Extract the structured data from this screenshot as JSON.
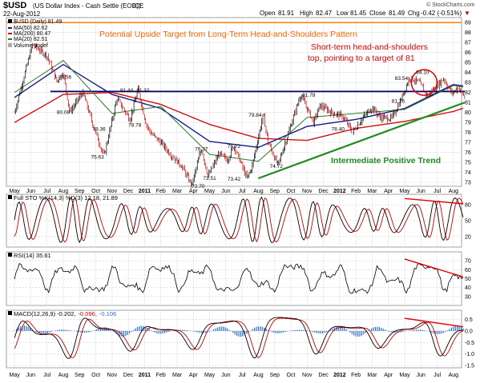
{
  "header": {
    "symbol": "$USD",
    "name": "(US Dollar Index - Cash Settle (EOD))",
    "exchange": "ICE",
    "date": "22-Aug-2012",
    "watermark": "© StockCharts.com",
    "open_label": "Open",
    "open": "81.91",
    "high_label": "High",
    "high": "82.47",
    "low_label": "Low",
    "low": "81.45",
    "close_label": "Close",
    "close": "81.49",
    "chg_label": "Chg",
    "chg": "-0.42 (-0.51%)",
    "chg_arrow": "▼"
  },
  "legend": {
    "price": "$USD (Daily) 81.49",
    "ma50": "MA(50) 82.62",
    "ma200": "MA(200) 80.47",
    "ma20": "MA(20) 82.51",
    "volume": "Volume undef"
  },
  "annotations": {
    "upside_target": "Potential Upside Target from Long-Term Head-and-Shoulders Pattern",
    "short_term_line1": "Short-term head-and-shoulders",
    "short_term_line2": "top, pointing to a target of 81",
    "trend": "Intermediate Positive Trend"
  },
  "panels": {
    "sto_label": "Full STO %K(14,3) %D(3) 12.18, 21.89",
    "rsi_label": "RSI(14) 35.61",
    "macd_label_prefix": "MACD(12,26,9) -0.202,",
    "macd_signal_value": "-0.096,",
    "macd_hist_value": "-0.106"
  },
  "colors": {
    "price": "#000000",
    "up_candle": "#000000",
    "down_candle": "#cc0000",
    "ma50": "#1a1a8c",
    "ma200": "#d01010",
    "ma20": "#2a7a2a",
    "target_line": "#ff7f00",
    "neckline": "#00006e",
    "trend_line": "#228b22",
    "annotation_red": "#e00000",
    "annotation_orange": "#ff6600",
    "annotation_green": "#1e8c1e",
    "macd_hist": "#2a6fd6"
  },
  "chart_data": [
    {
      "type": "line",
      "title": "$USD (Daily) 81.49",
      "x_labels": [
        "May",
        "Jun",
        "Jul",
        "Aug",
        "Sep",
        "Oct",
        "Nov",
        "Dec",
        "2011",
        "Feb",
        "Mar",
        "Apr",
        "May",
        "Jun",
        "Jul",
        "Aug",
        "Sep",
        "Oct",
        "Nov",
        "Dec",
        "2012",
        "Feb",
        "Mar",
        "Apr",
        "May",
        "Jun",
        "Jul",
        "Aug"
      ],
      "y_ticks": [
        73,
        74,
        75,
        76,
        77,
        78,
        79,
        80,
        81,
        82,
        83,
        84,
        85,
        86,
        87,
        88,
        89
      ],
      "ylim": [
        72.6,
        89.5
      ],
      "series": [
        {
          "name": "$USD (Daily)",
          "x": [
            0,
            1.1,
            2.0,
            2.6,
            3.0,
            3.4,
            4.2,
            4.9,
            5.5,
            6.3,
            7.1,
            7.6,
            8.1,
            8.4,
            9.0,
            9.6,
            10.3,
            10.9,
            11.5,
            11.9,
            12.6,
            13.1,
            13.5,
            14.3,
            14.6,
            15.3,
            15.6,
            16.2,
            16.9,
            17.6,
            18.4,
            18.8,
            19.5,
            20.2,
            20.8,
            21.4,
            22.0,
            22.5,
            23.2,
            23.7,
            24.3,
            24.9,
            25.4,
            25.9,
            26.4,
            26.9,
            27.3,
            27.7
          ],
          "y": [
            80.0,
            86.8,
            85.7,
            83.1,
            84.0,
            80.0,
            82.0,
            78.4,
            75.6,
            81.4,
            79.3,
            82.3,
            78.8,
            77.9,
            77.0,
            75.8,
            74.6,
            72.7,
            76.4,
            73.6,
            75.9,
            75.2,
            76.7,
            73.4,
            74.5,
            79.8,
            77.0,
            74.7,
            78.2,
            81.8,
            79.0,
            80.7,
            80.0,
            79.6,
            78.0,
            79.4,
            80.5,
            79.5,
            79.4,
            81.0,
            83.5,
            83.0,
            81.6,
            82.5,
            83.4,
            81.9,
            82.5,
            81.5
          ]
        },
        {
          "name": "MA(50)",
          "x": [
            0,
            3,
            6,
            9,
            12,
            15,
            18,
            21,
            24,
            27,
            27.7
          ],
          "y": [
            81.5,
            84.8,
            81.8,
            80.4,
            77.1,
            76.5,
            78.6,
            79.3,
            80.4,
            82.8,
            82.62
          ]
        },
        {
          "name": "MA(200)",
          "x": [
            0,
            3,
            6,
            9,
            12,
            15,
            18,
            21,
            24,
            27,
            27.7
          ],
          "y": [
            79.0,
            81.8,
            82.0,
            80.8,
            78.8,
            77.4,
            77.2,
            78.4,
            79.1,
            80.1,
            80.47
          ]
        },
        {
          "name": "MA(20)",
          "x": [
            0,
            3,
            6,
            9,
            12,
            15,
            18,
            21,
            24,
            27,
            27.7
          ],
          "y": [
            82.0,
            85.2,
            79.9,
            80.6,
            75.8,
            75.1,
            79.5,
            79.9,
            80.3,
            82.7,
            82.51
          ]
        }
      ],
      "price_labels": [
        {
          "text": "83.56",
          "x": 3.1,
          "y": 83.6
        },
        {
          "text": "80.08",
          "x": 3.0,
          "y": 80.1
        },
        {
          "text": "81.44",
          "x": 6.9,
          "y": 82.3
        },
        {
          "text": "81.32",
          "x": 7.9,
          "y": 82.3
        },
        {
          "text": "78.36",
          "x": 5.2,
          "y": 78.4
        },
        {
          "text": "78.78",
          "x": 7.4,
          "y": 78.8
        },
        {
          "text": "75.63",
          "x": 5.1,
          "y": 75.6
        },
        {
          "text": "76.37",
          "x": 11.5,
          "y": 76.4
        },
        {
          "text": "76.72",
          "x": 13.5,
          "y": 76.7
        },
        {
          "text": "73.51",
          "x": 12.0,
          "y": 73.5
        },
        {
          "text": "73.42",
          "x": 13.5,
          "y": 73.4
        },
        {
          "text": "72.70",
          "x": 11.3,
          "y": 72.7
        },
        {
          "text": "79.84",
          "x": 14.8,
          "y": 79.8
        },
        {
          "text": "74.72",
          "x": 16.1,
          "y": 74.7
        },
        {
          "text": "81.78",
          "x": 18.1,
          "y": 81.8
        },
        {
          "text": "78.40",
          "x": 19.9,
          "y": 78.4
        },
        {
          "text": "83.54",
          "x": 23.8,
          "y": 83.5
        },
        {
          "text": "81.16",
          "x": 23.6,
          "y": 81.2
        },
        {
          "text": "84.10",
          "x": 25.1,
          "y": 84.1
        }
      ],
      "lines": [
        {
          "name": "Potential Upside Target",
          "y": 89.0
        },
        {
          "name": "Neckline",
          "y": 82.1
        },
        {
          "name": "Intermediate Positive Trend",
          "x": [
            15.0,
            27.7
          ],
          "y": [
            73.4,
            81.0
          ]
        }
      ]
    },
    {
      "type": "line",
      "title": "Full STO %K(14,3) %D(3) 12.18, 21.89",
      "ylim": [
        0,
        100
      ],
      "y_ticks": [
        20,
        50,
        80
      ],
      "series": [
        {
          "name": "%K",
          "last": 12.18
        },
        {
          "name": "%D",
          "last": 21.89
        }
      ]
    },
    {
      "type": "line",
      "title": "RSI(14) 35.61",
      "ylim": [
        20,
        80
      ],
      "y_ticks": [
        30,
        40,
        50,
        60,
        70
      ],
      "series": [
        {
          "name": "RSI(14)",
          "last": 35.61
        }
      ]
    },
    {
      "type": "line",
      "title": "MACD(12,26,9) -0.202, -0.096, -0.106",
      "ylim": [
        -1.6,
        0.9
      ],
      "y_ticks": [
        -1.5,
        -1.0,
        -0.5,
        0.0,
        0.5
      ],
      "series": [
        {
          "name": "MACD",
          "last": -0.202
        },
        {
          "name": "Signal",
          "last": -0.096
        },
        {
          "name": "Histogram",
          "last": -0.106
        }
      ]
    }
  ]
}
